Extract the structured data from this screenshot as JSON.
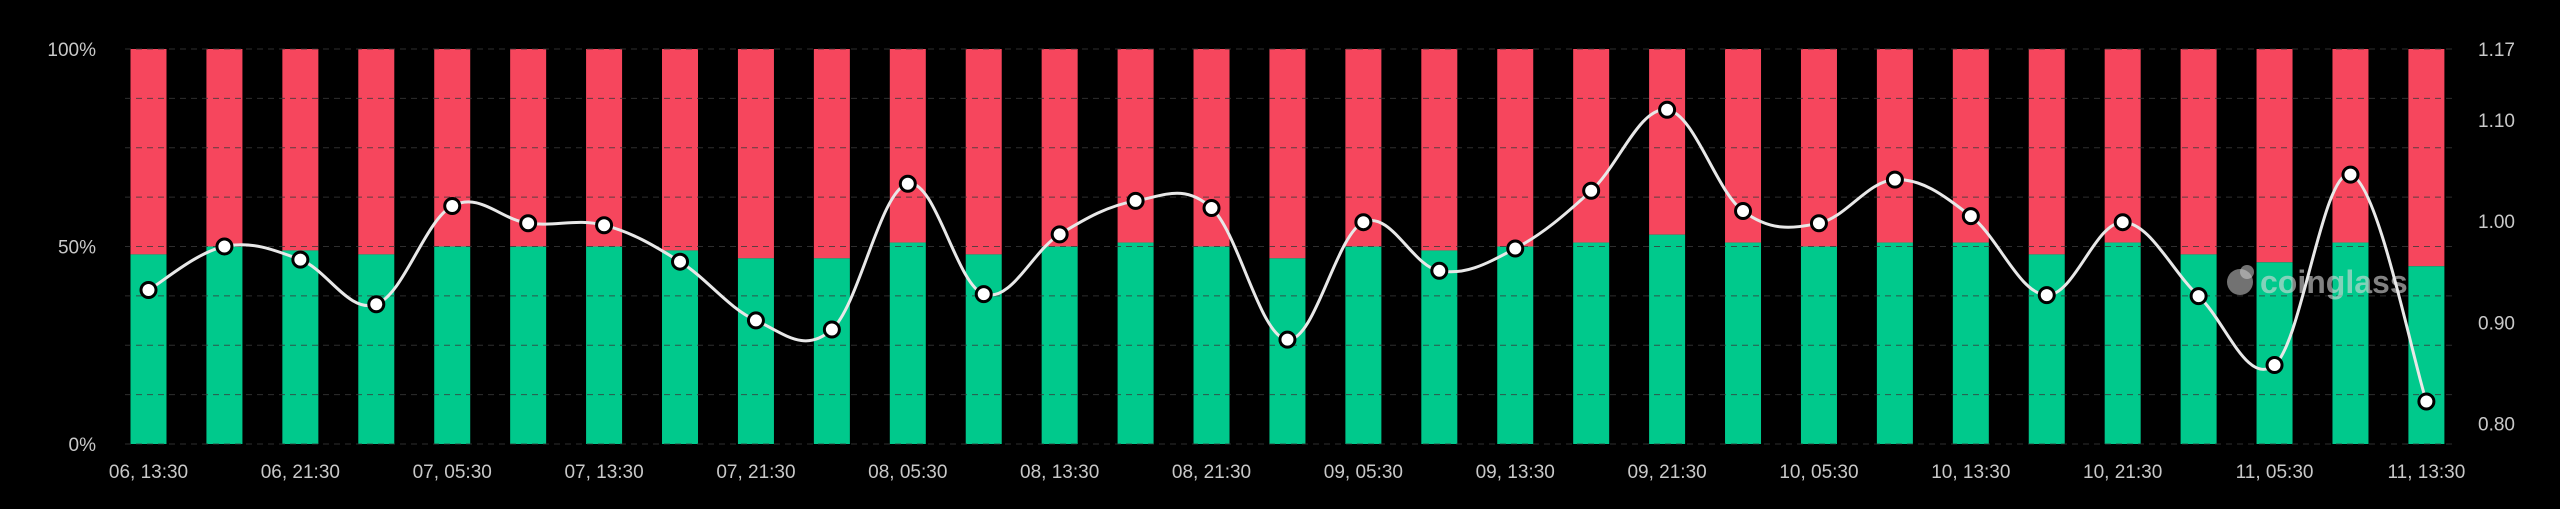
{
  "chart_data": {
    "type": "bar",
    "stacked_percent": true,
    "categories": [
      "06, 13:30",
      "",
      "06, 21:30",
      "",
      "07, 05:30",
      "",
      "07, 13:30",
      "",
      "07, 21:30",
      "",
      "08, 05:30",
      "",
      "08, 13:30",
      "",
      "08, 21:30",
      "",
      "09, 05:30",
      "",
      "09, 13:30",
      "",
      "09, 21:30",
      "",
      "10, 05:30",
      "",
      "10, 13:30",
      "",
      "10, 21:30",
      "",
      "11, 05:30",
      "",
      "11, 13:30"
    ],
    "series": [
      {
        "color": "#00c98c",
        "values": [
          48,
          50,
          49,
          48,
          50,
          50,
          50,
          49,
          47,
          47,
          51,
          48,
          50,
          51,
          50,
          47,
          50,
          49,
          50,
          51,
          53,
          51,
          50,
          51,
          51,
          48,
          51,
          48,
          46,
          51,
          45
        ]
      },
      {
        "color": "#f6465d",
        "values": [
          52,
          50,
          51,
          52,
          50,
          50,
          50,
          51,
          53,
          53,
          49,
          52,
          50,
          49,
          50,
          53,
          50,
          51,
          50,
          49,
          47,
          49,
          50,
          49,
          49,
          52,
          49,
          52,
          54,
          49,
          55
        ]
      },
      {
        "color": "#e8e8e8",
        "axis": "right",
        "values": [
          0.932,
          0.975,
          0.962,
          0.918,
          1.015,
          0.998,
          0.996,
          0.96,
          0.902,
          0.893,
          1.037,
          0.928,
          0.987,
          1.02,
          1.013,
          0.883,
          0.999,
          0.951,
          0.973,
          1.03,
          1.11,
          1.01,
          0.998,
          1.041,
          1.005,
          0.927,
          0.999,
          0.926,
          0.858,
          1.046,
          0.822
        ]
      }
    ],
    "y_left": {
      "ticks": [
        "0%",
        "50%",
        "100%"
      ],
      "min": 0,
      "max": 100
    },
    "y_right": {
      "ticks": [
        "0.80",
        "0.90",
        "1.00",
        "1.10",
        "1.17"
      ],
      "min": 0.78,
      "max": 1.17
    },
    "grid": true,
    "watermark": "coinglass"
  }
}
